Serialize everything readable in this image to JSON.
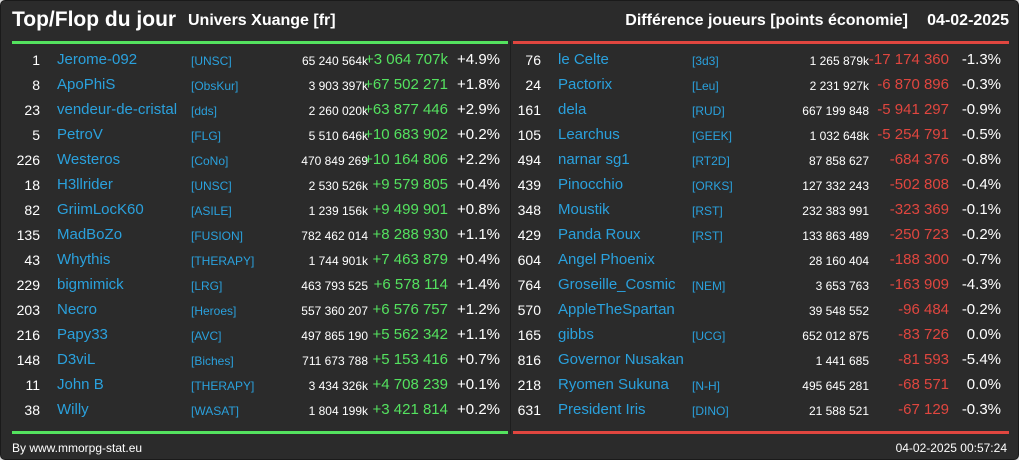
{
  "header": {
    "title": "Top/Flop du jour",
    "server": "Univers Xuange [fr]",
    "metric": "Différence joueurs [points économie]",
    "date": "04-02-2025"
  },
  "colors": {
    "background": "#2b2b2b",
    "link": "#2aa1dd",
    "gain": "#54e25f",
    "loss": "#e0463f",
    "text": "#ffffff"
  },
  "top": [
    {
      "rank": "1",
      "name": "Jerome-092",
      "tag": "[UNSC]",
      "points": "65 240 564k",
      "diff": "+3 064 707k",
      "pct": "+4.9%"
    },
    {
      "rank": "8",
      "name": "ApoPhiS",
      "tag": "[ObsKur]",
      "points": "3 903 397k",
      "diff": "+67 502 271",
      "pct": "+1.8%"
    },
    {
      "rank": "23",
      "name": "vendeur-de-cristal",
      "tag": "[dds]",
      "points": "2 260 020k",
      "diff": "+63 877 446",
      "pct": "+2.9%"
    },
    {
      "rank": "5",
      "name": "PetroV",
      "tag": "[FLG]",
      "points": "5 510 646k",
      "diff": "+10 683 902",
      "pct": "+0.2%"
    },
    {
      "rank": "226",
      "name": "Westeros",
      "tag": "[CoNo]",
      "points": "470 849 269",
      "diff": "+10 164 806",
      "pct": "+2.2%"
    },
    {
      "rank": "18",
      "name": "H3llrider",
      "tag": "[UNSC]",
      "points": "2 530 526k",
      "diff": "+9 579 805",
      "pct": "+0.4%"
    },
    {
      "rank": "82",
      "name": "GriimLocK60",
      "tag": "[ASILE]",
      "points": "1 239 156k",
      "diff": "+9 499 901",
      "pct": "+0.8%"
    },
    {
      "rank": "135",
      "name": "MadBoZo",
      "tag": "[FUSION]",
      "points": "782 462 014",
      "diff": "+8 288 930",
      "pct": "+1.1%"
    },
    {
      "rank": "43",
      "name": "Whythis",
      "tag": "[THERAPY]",
      "points": "1 744 901k",
      "diff": "+7 463 879",
      "pct": "+0.4%"
    },
    {
      "rank": "229",
      "name": "bigmimick",
      "tag": "[LRG]",
      "points": "463 793 525",
      "diff": "+6 578 114",
      "pct": "+1.4%"
    },
    {
      "rank": "203",
      "name": "Necro",
      "tag": "[Heroes]",
      "points": "557 360 207",
      "diff": "+6 576 757",
      "pct": "+1.2%"
    },
    {
      "rank": "216",
      "name": "Papy33",
      "tag": "[AVC]",
      "points": "497 865 190",
      "diff": "+5 562 342",
      "pct": "+1.1%"
    },
    {
      "rank": "148",
      "name": "D3viL",
      "tag": "[Biches]",
      "points": "711 673 788",
      "diff": "+5 153 416",
      "pct": "+0.7%"
    },
    {
      "rank": "11",
      "name": "John B",
      "tag": "[THERAPY]",
      "points": "3 434 326k",
      "diff": "+4 708 239",
      "pct": "+0.1%"
    },
    {
      "rank": "38",
      "name": "Willy",
      "tag": "[WASAT]",
      "points": "1 804 199k",
      "diff": "+3 421 814",
      "pct": "+0.2%"
    }
  ],
  "flop": [
    {
      "rank": "76",
      "name": "le Celte",
      "tag": "[3d3]",
      "points": "1 265 879k",
      "diff": "-17 174 360",
      "pct": "-1.3%"
    },
    {
      "rank": "24",
      "name": "Pactorix",
      "tag": "[Leu]",
      "points": "2 231 927k",
      "diff": "-6 870 896",
      "pct": "-0.3%"
    },
    {
      "rank": "161",
      "name": "dela",
      "tag": "[RUD]",
      "points": "667 199 848",
      "diff": "-5 941 297",
      "pct": "-0.9%"
    },
    {
      "rank": "105",
      "name": "Learchus",
      "tag": "[GEEK]",
      "points": "1 032 648k",
      "diff": "-5 254 791",
      "pct": "-0.5%"
    },
    {
      "rank": "494",
      "name": "narnar sg1",
      "tag": "[RT2D]",
      "points": "87 858 627",
      "diff": "-684 376",
      "pct": "-0.8%"
    },
    {
      "rank": "439",
      "name": "Pinocchio",
      "tag": "[ORKS]",
      "points": "127 332 243",
      "diff": "-502 808",
      "pct": "-0.4%"
    },
    {
      "rank": "348",
      "name": "Moustik",
      "tag": "[RST]",
      "points": "232 383 991",
      "diff": "-323 369",
      "pct": "-0.1%"
    },
    {
      "rank": "429",
      "name": "Panda Roux",
      "tag": "[RST]",
      "points": "133 863 489",
      "diff": "-250 723",
      "pct": "-0.2%"
    },
    {
      "rank": "604",
      "name": "Angel Phoenix",
      "tag": "",
      "points": "28 160 404",
      "diff": "-188 300",
      "pct": "-0.7%"
    },
    {
      "rank": "764",
      "name": "Groseille_Cosmic",
      "tag": "[NEM]",
      "points": "3 653 763",
      "diff": "-163 909",
      "pct": "-4.3%"
    },
    {
      "rank": "570",
      "name": "AppleTheSpartan",
      "tag": "",
      "points": "39 548 552",
      "diff": "-96 484",
      "pct": "-0.2%"
    },
    {
      "rank": "165",
      "name": "gibbs",
      "tag": "[UCG]",
      "points": "652 012 875",
      "diff": "-83 726",
      "pct": "0.0%"
    },
    {
      "rank": "816",
      "name": "Governor Nusakan",
      "tag": "",
      "points": "1 441 685",
      "diff": "-81 593",
      "pct": "-5.4%"
    },
    {
      "rank": "218",
      "name": "Ryomen Sukuna",
      "tag": "[N-H]",
      "points": "495 645 281",
      "diff": "-68 571",
      "pct": "0.0%"
    },
    {
      "rank": "631",
      "name": "President Iris",
      "tag": "[DINO]",
      "points": "21 588 521",
      "diff": "-67 129",
      "pct": "-0.3%"
    }
  ],
  "footer": {
    "credit": "By www.mmorpg-stat.eu",
    "timestamp": "04-02-2025 00:57:24"
  }
}
